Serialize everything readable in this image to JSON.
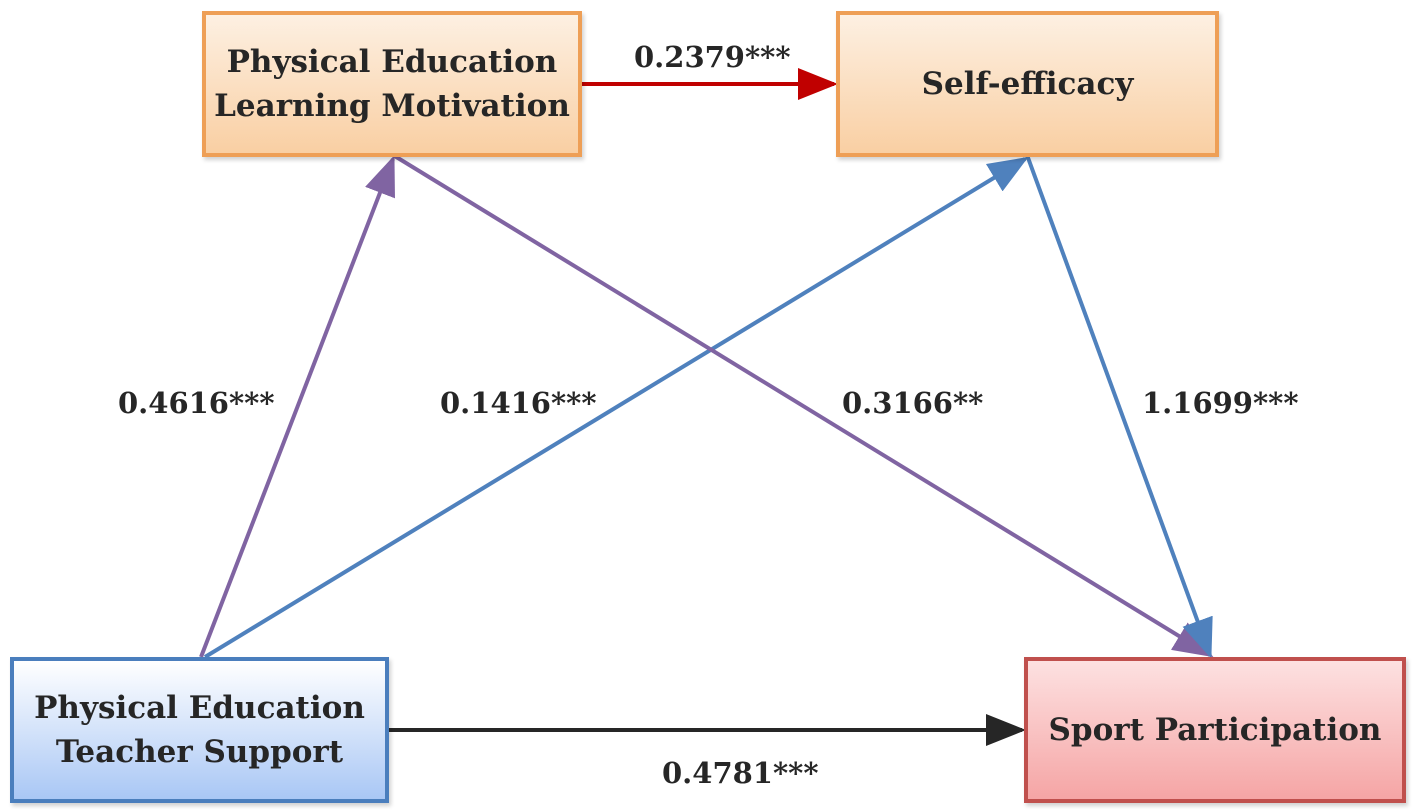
{
  "nodes": {
    "motivation": "Physical Education\nLearning Motivation",
    "self_efficacy": "Self-efficacy",
    "teacher_support": "Physical Education\nTeacher Support",
    "sport_participation": "Sport Participation"
  },
  "paths": {
    "motivation_to_self_efficacy": "0.2379***",
    "support_to_motivation": "0.4616***",
    "support_to_self_efficacy": "0.1416***",
    "motivation_to_participation": "0.3166**",
    "self_efficacy_to_participation": "1.1699***",
    "support_to_participation": "0.4781***"
  },
  "colors": {
    "motivation_path": "#8064a2",
    "self_efficacy_path": "#4f81bd",
    "mediation_link": "#c00000",
    "direct_path": "#262626"
  }
}
